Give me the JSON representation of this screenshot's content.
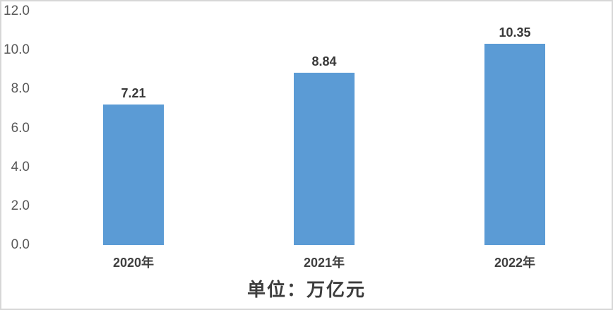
{
  "chart_data": {
    "type": "bar",
    "title": "单位：万亿元",
    "categories": [
      "2020年",
      "2021年",
      "2022年"
    ],
    "values": [
      7.21,
      8.84,
      10.35
    ],
    "data_labels": [
      "7.21",
      "8.84",
      "10.35"
    ],
    "xlabel": "",
    "ylabel": "",
    "ylim": [
      0,
      12
    ],
    "ytick_interval": 2,
    "ytick_labels": [
      "0.0",
      "2.0",
      "4.0",
      "6.0",
      "8.0",
      "10.0",
      "12.0"
    ],
    "grid": true,
    "legend": "none",
    "colors": {
      "bar": "#5B9BD5",
      "gridline": "#D9D9D9",
      "ytick_label": "#595959",
      "category_label": "#404040",
      "data_label": "#383838",
      "title": "#3D3D3D",
      "frame_border": "#D7D7D7",
      "background": "#FFFFFF"
    }
  }
}
